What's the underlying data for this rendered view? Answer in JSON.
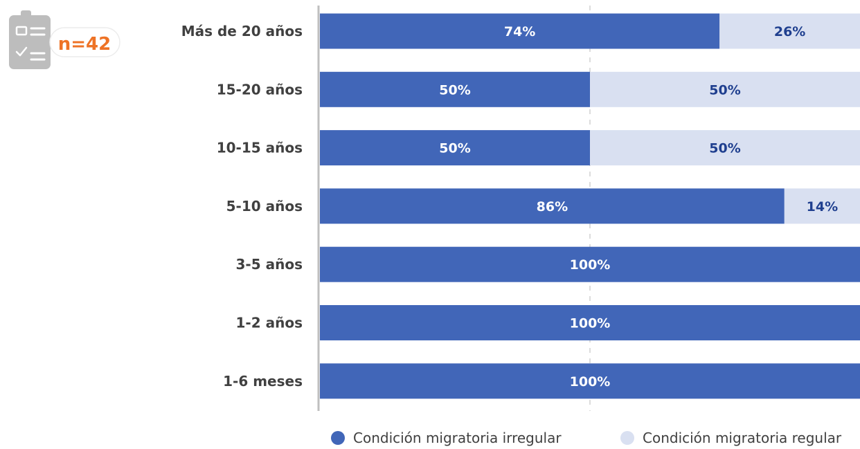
{
  "badge": {
    "text": "n=42",
    "icon": "clipboard-checklist-icon",
    "color": "#ee7326"
  },
  "chart_data": {
    "type": "bar",
    "orientation": "horizontal",
    "stacked": true,
    "percent_stacked": true,
    "categories": [
      "Más de 20 años",
      "15-20 años",
      "10-15 años",
      "5-10 años",
      "3-5 años",
      "1-2 años",
      "1-6 meses"
    ],
    "series": [
      {
        "name": "Condición migratoria irregular",
        "values": [
          74,
          50,
          50,
          86,
          100,
          100,
          100
        ],
        "labels": [
          "74%",
          "50%",
          "50%",
          "86%",
          "100%",
          "100%",
          "100%"
        ],
        "color": "#4166b8",
        "label_color": "#ffffff"
      },
      {
        "name": "Condición migratoria regular",
        "values": [
          26,
          50,
          50,
          14,
          0,
          0,
          0
        ],
        "labels": [
          "26%",
          "50%",
          "50%",
          "14%",
          "",
          "",
          ""
        ],
        "color": "#d9e0f1",
        "label_color": "#1f3f8f"
      }
    ],
    "xlim": [
      0,
      100
    ],
    "gridlines": "dashed at 50%",
    "legend_position": "bottom"
  }
}
